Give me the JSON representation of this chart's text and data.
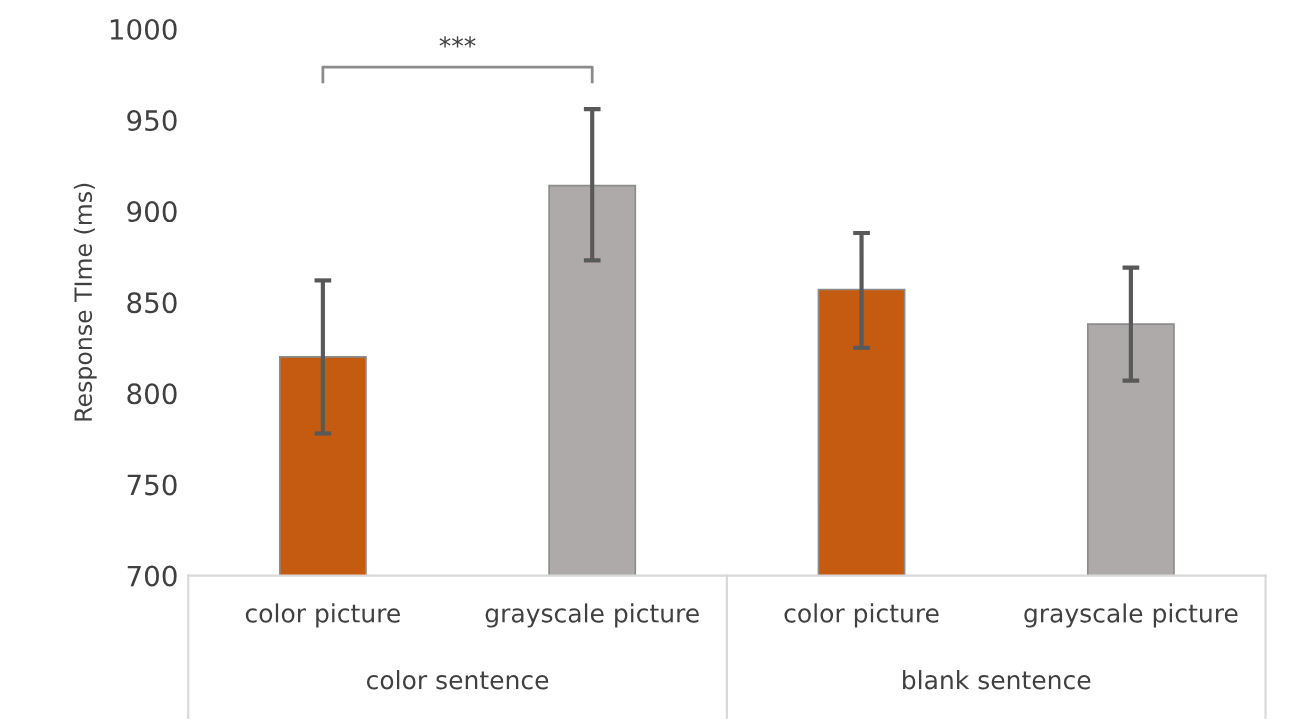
{
  "chart_data": {
    "type": "bar",
    "ylabel": "Response TIme (ms)",
    "categories": [
      "color picture",
      "grayscale picture",
      "color picture",
      "grayscale picture"
    ],
    "values": [
      820,
      914,
      857,
      838
    ],
    "colors": [
      "#c55a11",
      "#aeaaaa",
      "#c55a11",
      "#aeaaaa"
    ],
    "errors": [
      [
        778,
        862
      ],
      [
        873,
        956
      ],
      [
        825,
        888
      ],
      [
        807,
        869
      ]
    ],
    "ylim": [
      700,
      1000
    ],
    "yticks": [
      700,
      750,
      800,
      850,
      900,
      950,
      1000
    ],
    "grid": false,
    "legend": false,
    "annotations": [
      "***",
      "color sentence",
      "blank sentence"
    ]
  }
}
